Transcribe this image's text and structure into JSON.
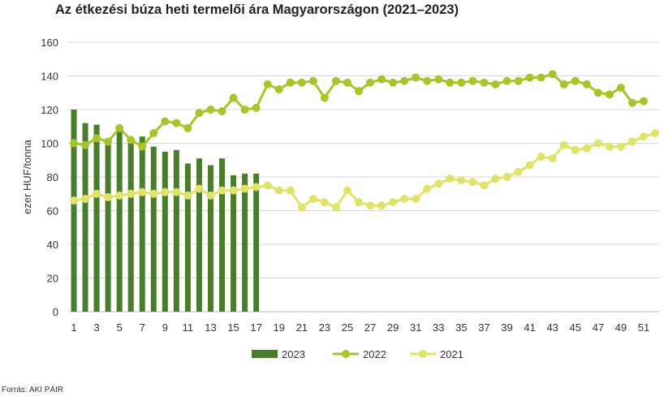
{
  "chart_data": {
    "type": "bar+line",
    "title": "Az étkezési búza heti termelői ára Magyarországon (2021–2023)",
    "xlabel": "",
    "ylabel": "ezer HUF/tonna",
    "ylim": [
      0,
      160
    ],
    "yticks": [
      0,
      20,
      40,
      60,
      80,
      100,
      120,
      140,
      160
    ],
    "xticks": [
      1,
      3,
      5,
      7,
      9,
      11,
      13,
      15,
      17,
      19,
      21,
      23,
      25,
      27,
      29,
      31,
      33,
      35,
      37,
      39,
      41,
      43,
      45,
      47,
      49,
      51
    ],
    "grid": true,
    "legend": "bottom",
    "series": [
      {
        "name": "2023",
        "type": "bar",
        "color": "#4a7c2e",
        "values": [
          120,
          112,
          111,
          103,
          107,
          103,
          104,
          98,
          95,
          96,
          88,
          91,
          87,
          91,
          81,
          82,
          82
        ]
      },
      {
        "name": "2022",
        "type": "line",
        "color": "#a6c52b",
        "values": [
          100,
          99,
          103,
          101,
          109,
          102,
          98,
          106,
          113,
          112,
          109,
          118,
          120,
          119,
          127,
          120,
          121,
          135,
          132,
          136,
          136,
          137,
          127,
          137,
          136,
          131,
          136,
          138,
          136,
          137,
          139,
          137,
          138,
          136,
          136,
          137,
          136,
          135,
          137,
          137,
          139,
          139,
          141,
          135,
          137,
          135,
          130,
          129,
          133,
          124,
          125
        ]
      },
      {
        "name": "2021",
        "type": "line",
        "color": "#dfe36a",
        "values": [
          66,
          67,
          70,
          68,
          69,
          70,
          71,
          70,
          71,
          71,
          69,
          73,
          69,
          72,
          72,
          73,
          74,
          75,
          72,
          72,
          62,
          67,
          65,
          62,
          72,
          65,
          63,
          63,
          65,
          67,
          67,
          73,
          76,
          79,
          78,
          77,
          75,
          79,
          80,
          83,
          87,
          92,
          91,
          99,
          96,
          97,
          100,
          98,
          98,
          101,
          104,
          106
        ]
      }
    ]
  },
  "source": "Forrás: AKI PÁIR"
}
